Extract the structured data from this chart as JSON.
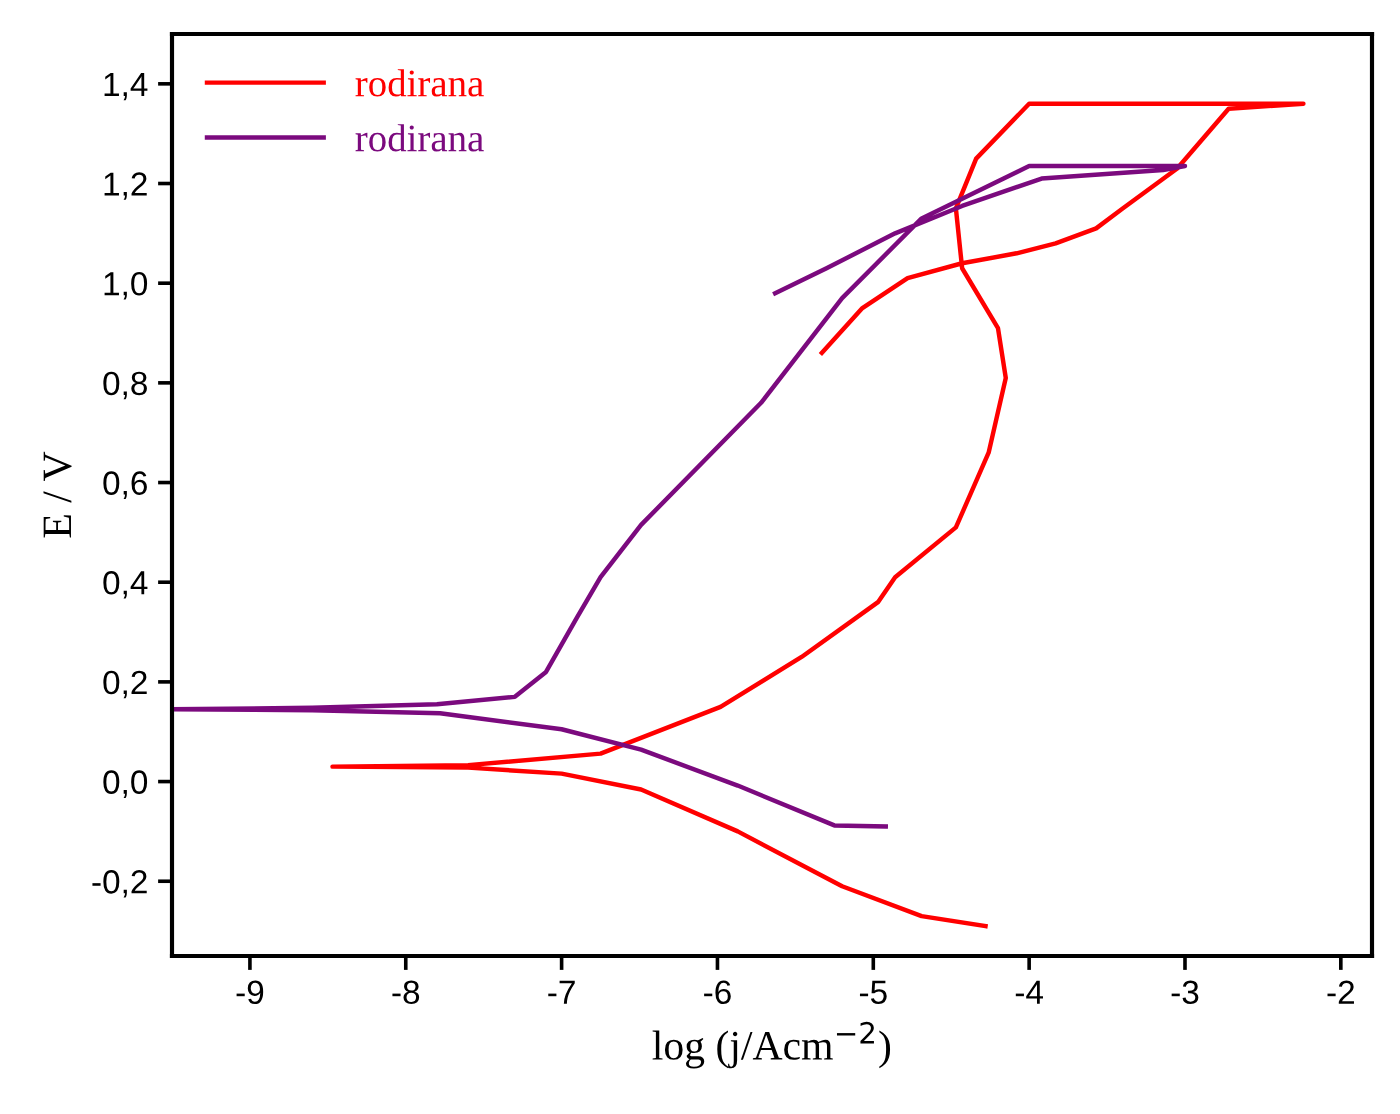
{
  "chart_data": {
    "type": "line",
    "xlabel": "log (j/Acm$^{−2}$)",
    "ylabel": "E / V",
    "xlim": [
      -9.5,
      -1.8
    ],
    "ylim": [
      -0.35,
      1.5
    ],
    "xticks": [
      -9,
      -8,
      -7,
      -6,
      -5,
      -4,
      -3,
      -2
    ],
    "yticks": [
      {
        "value": -0.2,
        "label": "-0,2"
      },
      {
        "value": 0.0,
        "label": "0,0"
      },
      {
        "value": 0.2,
        "label": "0,2"
      },
      {
        "value": 0.4,
        "label": "0,4"
      },
      {
        "value": 0.6,
        "label": "0,6"
      },
      {
        "value": 0.8,
        "label": "0,8"
      },
      {
        "value": 1.0,
        "label": "1,0"
      },
      {
        "value": 1.2,
        "label": "1,2"
      },
      {
        "value": 1.4,
        "label": "1,4"
      }
    ],
    "grid": false,
    "legend": "top left",
    "marker": "none",
    "line_style": "solid",
    "series": [
      {
        "name": "rodirana",
        "color": "#ff0000",
        "x": [
          -4.28,
          -4.69,
          -5.2,
          -5.87,
          -6.49,
          -7.0,
          -7.6,
          -8.47,
          -7.6,
          -6.75,
          -5.98,
          -5.46,
          -4.97,
          -4.86,
          -4.47,
          -4.26,
          -4.15,
          -4.2,
          -4.43,
          -4.47,
          -4.34,
          -4.0,
          -2.24,
          -2.72,
          -3.05,
          -3.4,
          -3.57,
          -3.83,
          -4.08,
          -4.43,
          -4.78,
          -5.07,
          -5.33
        ],
        "values": [
          -0.29,
          -0.27,
          -0.21,
          -0.1,
          -0.016,
          0.016,
          0.028,
          0.03,
          0.033,
          0.056,
          0.15,
          0.25,
          0.36,
          0.41,
          0.51,
          0.66,
          0.81,
          0.91,
          1.03,
          1.15,
          1.25,
          1.36,
          1.36,
          1.35,
          1.23,
          1.15,
          1.11,
          1.08,
          1.06,
          1.04,
          1.01,
          0.95,
          0.86
        ]
      },
      {
        "name": "rodirana",
        "color": "#7b0a7e",
        "x": [
          -4.92,
          -5.25,
          -5.87,
          -6.49,
          -7.0,
          -7.78,
          -8.6,
          -9.5,
          -8.6,
          -7.8,
          -7.3,
          -7.1,
          -6.9,
          -6.75,
          -6.49,
          -5.72,
          -5.2,
          -4.69,
          -4.0,
          -3.0,
          -3.14,
          -3.92,
          -4.43,
          -4.86,
          -5.3,
          -5.63
        ],
        "values": [
          -0.09,
          -0.088,
          -0.008,
          0.064,
          0.105,
          0.137,
          0.143,
          0.145,
          0.148,
          0.155,
          0.17,
          0.22,
          0.33,
          0.41,
          0.515,
          0.76,
          0.97,
          1.13,
          1.235,
          1.235,
          1.227,
          1.21,
          1.155,
          1.1,
          1.03,
          0.98
        ]
      }
    ]
  }
}
